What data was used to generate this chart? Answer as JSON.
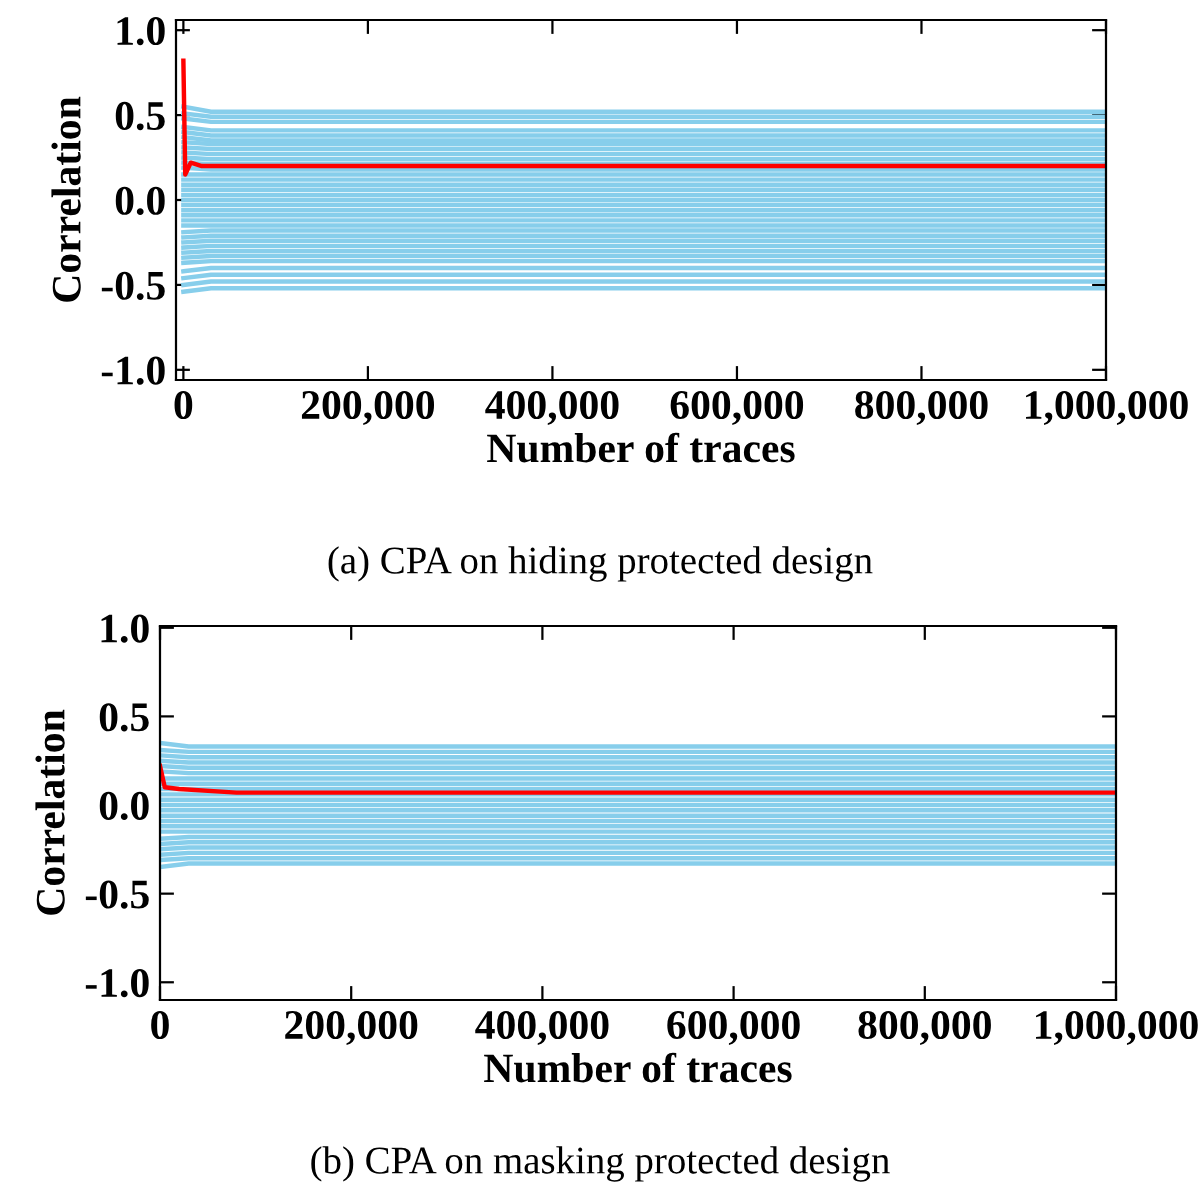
{
  "chart_data": [
    {
      "type": "line",
      "xlabel": "Number of traces",
      "ylabel": "Correlation",
      "annotations": [
        "(a) CPA on hiding protected design"
      ],
      "xlim": [
        -8000,
        1000000
      ],
      "ylim": [
        -1.06,
        1.06
      ],
      "xticks": [
        {
          "value": 0,
          "label": "0"
        },
        {
          "value": 200000,
          "label": "200,000"
        },
        {
          "value": 400000,
          "label": "400,000"
        },
        {
          "value": 600000,
          "label": "600,000"
        },
        {
          "value": 800000,
          "label": "800,000"
        },
        {
          "value": 1000000,
          "label": "1,000,000"
        }
      ],
      "yticks": [
        {
          "value": 1.0,
          "label": "1.0"
        },
        {
          "value": 0.5,
          "label": "0.5"
        },
        {
          "value": 0.0,
          "label": "0.0"
        },
        {
          "value": -0.5,
          "label": "-0.5"
        },
        {
          "value": -1.0,
          "label": "-1.0"
        }
      ],
      "grid": false,
      "legend": false,
      "x": [
        0,
        30000,
        1000000
      ],
      "series": [
        {
          "color": "#87ceeb",
          "values": [
            0.55,
            0.52,
            0.52
          ]
        },
        {
          "color": "#87ceeb",
          "values": [
            0.51,
            0.49,
            0.49
          ]
        },
        {
          "color": "#87ceeb",
          "values": [
            0.48,
            0.46,
            0.46
          ]
        },
        {
          "color": "#87ceeb",
          "values": [
            0.43,
            0.41,
            0.41
          ]
        },
        {
          "color": "#87ceeb",
          "values": [
            0.4,
            0.38,
            0.38
          ]
        },
        {
          "color": "#87ceeb",
          "values": [
            0.37,
            0.35,
            0.35
          ]
        },
        {
          "color": "#87ceeb",
          "values": [
            0.34,
            0.33,
            0.33
          ]
        },
        {
          "color": "#87ceeb",
          "values": [
            0.31,
            0.3,
            0.3
          ]
        },
        {
          "color": "#87ceeb",
          "values": [
            0.28,
            0.27,
            0.27
          ]
        },
        {
          "color": "#87ceeb",
          "values": [
            0.25,
            0.24,
            0.24
          ]
        },
        {
          "color": "#87ceeb",
          "values": [
            0.22,
            0.21,
            0.21
          ]
        },
        {
          "color": "#87ceeb",
          "values": [
            0.19,
            0.18,
            0.18
          ]
        },
        {
          "color": "#87ceeb",
          "values": [
            0.15,
            0.15,
            0.15
          ]
        },
        {
          "color": "#87ceeb",
          "values": [
            0.12,
            0.12,
            0.12
          ]
        },
        {
          "color": "#87ceeb",
          "values": [
            0.09,
            0.09,
            0.09
          ]
        },
        {
          "color": "#87ceeb",
          "values": [
            0.06,
            0.06,
            0.06
          ]
        },
        {
          "color": "#87ceeb",
          "values": [
            0.03,
            0.03,
            0.03
          ]
        },
        {
          "color": "#87ceeb",
          "values": [
            0.0,
            0.0,
            0.0
          ]
        },
        {
          "color": "#87ceeb",
          "values": [
            -0.03,
            -0.03,
            -0.03
          ]
        },
        {
          "color": "#87ceeb",
          "values": [
            -0.06,
            -0.06,
            -0.06
          ]
        },
        {
          "color": "#87ceeb",
          "values": [
            -0.09,
            -0.09,
            -0.09
          ]
        },
        {
          "color": "#87ceeb",
          "values": [
            -0.12,
            -0.12,
            -0.12
          ]
        },
        {
          "color": "#87ceeb",
          "values": [
            -0.15,
            -0.15,
            -0.15
          ]
        },
        {
          "color": "#87ceeb",
          "values": [
            -0.19,
            -0.18,
            -0.18
          ]
        },
        {
          "color": "#87ceeb",
          "values": [
            -0.22,
            -0.21,
            -0.21
          ]
        },
        {
          "color": "#87ceeb",
          "values": [
            -0.25,
            -0.24,
            -0.24
          ]
        },
        {
          "color": "#87ceeb",
          "values": [
            -0.28,
            -0.27,
            -0.27
          ]
        },
        {
          "color": "#87ceeb",
          "values": [
            -0.31,
            -0.3,
            -0.3
          ]
        },
        {
          "color": "#87ceeb",
          "values": [
            -0.34,
            -0.33,
            -0.33
          ]
        },
        {
          "color": "#87ceeb",
          "values": [
            -0.37,
            -0.36,
            -0.36
          ]
        },
        {
          "color": "#87ceeb",
          "values": [
            -0.42,
            -0.4,
            -0.4
          ]
        },
        {
          "color": "#87ceeb",
          "values": [
            -0.46,
            -0.44,
            -0.44
          ]
        },
        {
          "color": "#87ceeb",
          "values": [
            -0.5,
            -0.48,
            -0.48
          ]
        },
        {
          "color": "#87ceeb",
          "values": [
            -0.54,
            -0.52,
            -0.52
          ]
        },
        {
          "color": "#ff0000",
          "x": [
            0,
            2000,
            8000,
            20000,
            100000,
            1000000
          ],
          "values": [
            0.82,
            0.15,
            0.22,
            0.2,
            0.2,
            0.2
          ]
        }
      ]
    },
    {
      "type": "line",
      "xlabel": "Number of traces",
      "ylabel": "Correlation",
      "annotations": [
        "(b) CPA on masking protected design"
      ],
      "xlim": [
        0,
        1000000
      ],
      "ylim": [
        -1.1,
        1.01
      ],
      "xticks": [
        {
          "value": 0,
          "label": "0"
        },
        {
          "value": 200000,
          "label": "200,000"
        },
        {
          "value": 400000,
          "label": "400,000"
        },
        {
          "value": 600000,
          "label": "600,000"
        },
        {
          "value": 800000,
          "label": "800,000"
        },
        {
          "value": 1000000,
          "label": "1,000,000"
        }
      ],
      "yticks": [
        {
          "value": 1.0,
          "label": "1.0"
        },
        {
          "value": 0.5,
          "label": "0.5"
        },
        {
          "value": 0.0,
          "label": "0.0"
        },
        {
          "value": -0.5,
          "label": "-0.5"
        },
        {
          "value": -1.0,
          "label": "-1.0"
        }
      ],
      "grid": false,
      "legend": false,
      "x": [
        0,
        30000,
        1000000
      ],
      "series": [
        {
          "color": "#87ceeb",
          "values": [
            0.35,
            0.33,
            0.33
          ]
        },
        {
          "color": "#87ceeb",
          "values": [
            0.31,
            0.3,
            0.3
          ]
        },
        {
          "color": "#87ceeb",
          "values": [
            0.28,
            0.27,
            0.27
          ]
        },
        {
          "color": "#87ceeb",
          "values": [
            0.25,
            0.24,
            0.24
          ]
        },
        {
          "color": "#87ceeb",
          "values": [
            0.22,
            0.21,
            0.21
          ]
        },
        {
          "color": "#87ceeb",
          "values": [
            0.19,
            0.18,
            0.18
          ]
        },
        {
          "color": "#87ceeb",
          "values": [
            0.15,
            0.15,
            0.15
          ]
        },
        {
          "color": "#87ceeb",
          "values": [
            0.12,
            0.12,
            0.12
          ]
        },
        {
          "color": "#87ceeb",
          "values": [
            0.09,
            0.09,
            0.09
          ]
        },
        {
          "color": "#87ceeb",
          "values": [
            0.06,
            0.06,
            0.06
          ]
        },
        {
          "color": "#87ceeb",
          "values": [
            0.03,
            0.03,
            0.03
          ]
        },
        {
          "color": "#87ceeb",
          "values": [
            0.0,
            0.0,
            0.0
          ]
        },
        {
          "color": "#87ceeb",
          "values": [
            -0.03,
            -0.03,
            -0.03
          ]
        },
        {
          "color": "#87ceeb",
          "values": [
            -0.06,
            -0.06,
            -0.06
          ]
        },
        {
          "color": "#87ceeb",
          "values": [
            -0.09,
            -0.09,
            -0.09
          ]
        },
        {
          "color": "#87ceeb",
          "values": [
            -0.12,
            -0.12,
            -0.12
          ]
        },
        {
          "color": "#87ceeb",
          "values": [
            -0.15,
            -0.15,
            -0.15
          ]
        },
        {
          "color": "#87ceeb",
          "values": [
            -0.19,
            -0.18,
            -0.18
          ]
        },
        {
          "color": "#87ceeb",
          "values": [
            -0.22,
            -0.21,
            -0.21
          ]
        },
        {
          "color": "#87ceeb",
          "values": [
            -0.25,
            -0.24,
            -0.24
          ]
        },
        {
          "color": "#87ceeb",
          "values": [
            -0.28,
            -0.27,
            -0.27
          ]
        },
        {
          "color": "#87ceeb",
          "values": [
            -0.31,
            -0.3,
            -0.3
          ]
        },
        {
          "color": "#87ceeb",
          "values": [
            -0.35,
            -0.33,
            -0.33
          ]
        },
        {
          "color": "#ff0000",
          "x": [
            0,
            5000,
            20000,
            80000,
            1000000
          ],
          "values": [
            0.22,
            0.1,
            0.09,
            0.07,
            0.07
          ]
        }
      ]
    }
  ]
}
